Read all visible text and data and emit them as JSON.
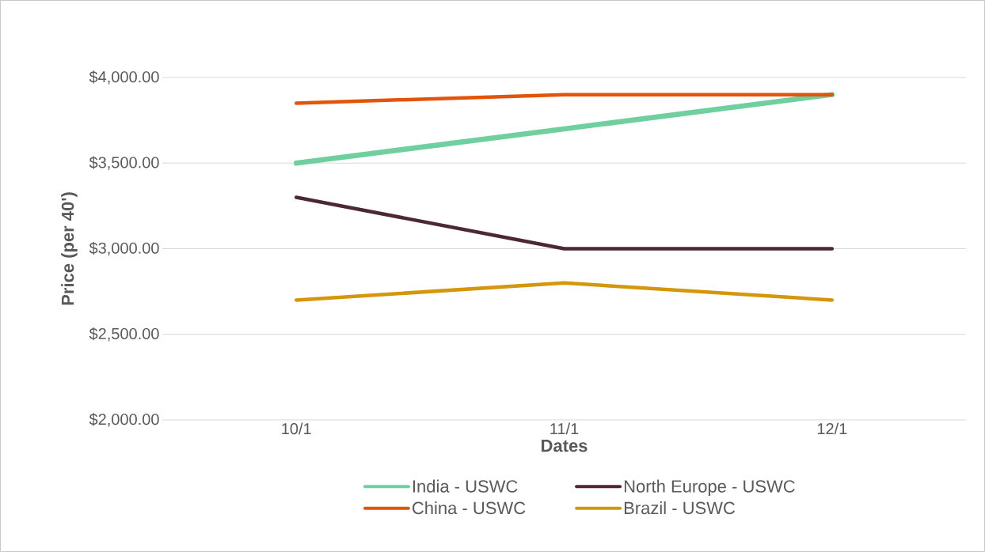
{
  "chart_data": {
    "type": "line",
    "xlabel": "Dates",
    "ylabel": "Price (per 40')",
    "categories": [
      "10/1",
      "11/1",
      "12/1"
    ],
    "series": [
      {
        "name": "India - USWC",
        "color": "#70cf9e",
        "values": [
          3500,
          3700,
          3900
        ]
      },
      {
        "name": "North Europe - USWC",
        "color": "#4c2834",
        "values": [
          3300,
          3000,
          3000
        ]
      },
      {
        "name": "China - USWC",
        "color": "#e2540c",
        "values": [
          3850,
          3900,
          3900
        ]
      },
      {
        "name": "Brazil - USWC",
        "color": "#d4960a",
        "values": [
          2700,
          2800,
          2700
        ]
      }
    ],
    "ylim": [
      2000,
      4000
    ],
    "yticks": [
      {
        "value": 2000,
        "label": "$2,000.00"
      },
      {
        "value": 2500,
        "label": "$2,500.00"
      },
      {
        "value": 3000,
        "label": "$3,000.00"
      },
      {
        "value": 3500,
        "label": "$3,500.00"
      },
      {
        "value": 4000,
        "label": "$4,000.00"
      }
    ],
    "grid": "y",
    "legend": "bottom",
    "marker": "none",
    "line_style": "solid"
  }
}
